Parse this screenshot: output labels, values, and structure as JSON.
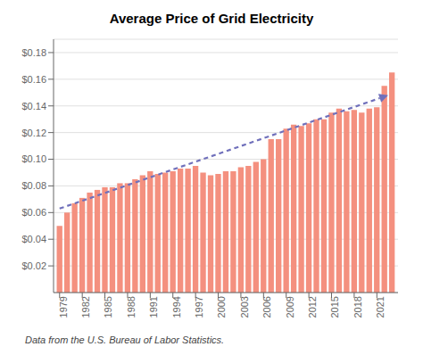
{
  "chart_data": {
    "type": "bar",
    "title": "Average Price of Grid Electricity",
    "footnote": "Data from the U.S. Bureau of Labor Statistics.",
    "x": [
      1979,
      1980,
      1981,
      1982,
      1983,
      1984,
      1985,
      1986,
      1987,
      1988,
      1989,
      1990,
      1991,
      1992,
      1993,
      1994,
      1995,
      1996,
      1997,
      1998,
      1999,
      2000,
      2001,
      2002,
      2003,
      2004,
      2005,
      2006,
      2007,
      2008,
      2009,
      2010,
      2011,
      2012,
      2013,
      2014,
      2015,
      2016,
      2017,
      2018,
      2019,
      2020,
      2021,
      2022,
      2023
    ],
    "values": [
      0.05,
      0.06,
      0.067,
      0.071,
      0.075,
      0.077,
      0.079,
      0.079,
      0.082,
      0.082,
      0.085,
      0.088,
      0.091,
      0.089,
      0.09,
      0.091,
      0.093,
      0.093,
      0.095,
      0.09,
      0.088,
      0.089,
      0.091,
      0.091,
      0.094,
      0.095,
      0.098,
      0.1,
      0.115,
      0.115,
      0.123,
      0.126,
      0.125,
      0.127,
      0.13,
      0.13,
      0.135,
      0.138,
      0.136,
      0.137,
      0.135,
      0.138,
      0.139,
      0.155,
      0.165
    ],
    "color": "#F4907F",
    "xlim": [
      1978.2,
      2023.8
    ],
    "xticks": [
      1979,
      1982,
      1985,
      1988,
      1991,
      1994,
      1997,
      2000,
      2003,
      2006,
      2009,
      2012,
      2015,
      2018,
      2021
    ],
    "ylim": [
      0.0,
      0.19
    ],
    "yticks": [
      {
        "value": 0.02,
        "label": "$0.02"
      },
      {
        "value": 0.04,
        "label": "$0.04"
      },
      {
        "value": 0.06,
        "label": "$0.06"
      },
      {
        "value": 0.08,
        "label": "$0.08"
      },
      {
        "value": 0.1,
        "label": "$0.10"
      },
      {
        "value": 0.12,
        "label": "$0.12"
      },
      {
        "value": 0.14,
        "label": "$0.14"
      },
      {
        "value": 0.16,
        "label": "$0.16"
      },
      {
        "value": 0.18,
        "label": "$0.18"
      }
    ],
    "grid": true,
    "trend": {
      "x": [
        1979,
        2022.5
      ],
      "y": [
        0.063,
        0.148
      ],
      "color": "#7070BB",
      "line_style": "dashed"
    }
  }
}
